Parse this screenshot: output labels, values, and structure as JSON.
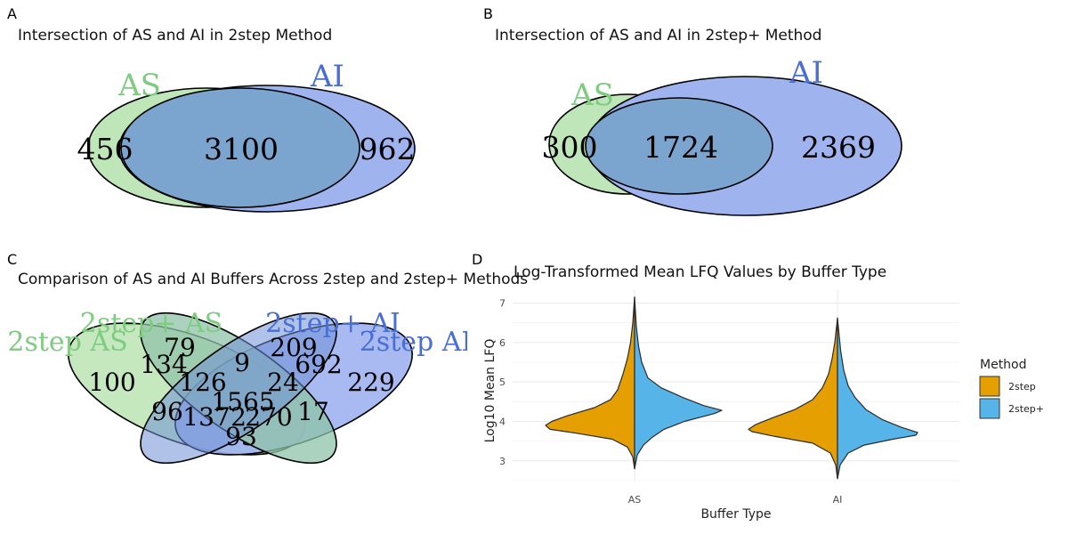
{
  "colors": {
    "as_fill": "#bfe6b8",
    "as_text": "#7fcb80",
    "ai_fill": "#9fb3ef",
    "ai_text": "#4a6fd4",
    "overlap_fill": "#7ba4ce",
    "four_overlap_a": "#8fc3a8",
    "four_overlap_b": "#6f8fd6",
    "step2": "#E69F00",
    "step2plus": "#56B4E9"
  },
  "panels": {
    "A": {
      "letter": "A",
      "title": "Intersection of AS and AI in 2step Method",
      "set_labels": [
        "AS",
        "AI"
      ],
      "counts": {
        "as_only": "456",
        "both": "3100",
        "ai_only": "962"
      }
    },
    "B": {
      "letter": "B",
      "title": "Intersection of AS and AI in 2step+ Method",
      "set_labels": [
        "AS",
        "AI"
      ],
      "counts": {
        "as_only": "300",
        "both": "1724",
        "ai_only": "2369"
      }
    },
    "C": {
      "letter": "C",
      "title": "Comparison of AS and AI Buffers Across 2step and 2step+ Methods",
      "set_labels": [
        "2step AS",
        "2step+ AS",
        "2step+ AI",
        "2step AI"
      ],
      "regions": {
        "c79": "79",
        "c209": "209",
        "c134": "134",
        "c9": "9",
        "c692": "692",
        "c100": "100",
        "c126": "126",
        "c24": "24",
        "c229": "229",
        "c1565": "1565",
        "c96": "96",
        "c137": "137",
        "c2": "2",
        "c270": "270",
        "c17": "17",
        "c93": "93"
      }
    },
    "D": {
      "letter": "D",
      "title": "Log-Transformed Mean LFQ Values by Buffer Type",
      "xlabel": "Buffer Type",
      "ylabel": "Log10 Mean LFQ",
      "legend_title": "Method",
      "legend_items": [
        "2step",
        "2step+"
      ]
    }
  },
  "chart_data": [
    {
      "type": "venn",
      "panel": "A",
      "title": "Intersection of AS and AI in 2step Method",
      "sets": [
        "AS",
        "AI"
      ],
      "values": {
        "AS only": 456,
        "AS & AI": 3100,
        "AI only": 962
      }
    },
    {
      "type": "venn",
      "panel": "B",
      "title": "Intersection of AS and AI in 2step+ Method",
      "sets": [
        "AS",
        "AI"
      ],
      "values": {
        "AS only": 300,
        "AS & AI": 1724,
        "AI only": 2369
      }
    },
    {
      "type": "venn",
      "panel": "C",
      "title": "Comparison of AS and AI Buffers Across 2step and 2step+ Methods",
      "sets": [
        "2step AS",
        "2step+ AS",
        "2step+ AI",
        "2step AI"
      ],
      "region_values": [
        79,
        209,
        134,
        9,
        692,
        100,
        126,
        24,
        229,
        1565,
        96,
        137,
        2,
        270,
        17,
        93
      ]
    },
    {
      "type": "violin",
      "panel": "D",
      "title": "Log-Transformed Mean LFQ Values by Buffer Type",
      "xlabel": "Buffer Type",
      "ylabel": "Log10 Mean LFQ",
      "categories": [
        "AS",
        "AI"
      ],
      "yticks": [
        3,
        4,
        5,
        6,
        7
      ],
      "ylim": [
        2.5,
        7.35
      ],
      "legend_position": "right",
      "grid": true,
      "series": [
        {
          "name": "2step",
          "side": "left",
          "ranges": [
            [
              2.8,
              7.15
            ],
            [
              2.55,
              6.62
            ]
          ],
          "profile": [
            [
              [
                2.8,
                0
              ],
              [
                3.1,
                0.02
              ],
              [
                3.35,
                0.08
              ],
              [
                3.55,
                0.25
              ],
              [
                3.7,
                0.65
              ],
              [
                3.8,
                0.95
              ],
              [
                3.9,
                1.0
              ],
              [
                4.0,
                0.93
              ],
              [
                4.15,
                0.75
              ],
              [
                4.35,
                0.45
              ],
              [
                4.55,
                0.27
              ],
              [
                4.8,
                0.19
              ],
              [
                5.2,
                0.13
              ],
              [
                5.6,
                0.08
              ],
              [
                6.0,
                0.045
              ],
              [
                6.5,
                0.02
              ],
              [
                7.15,
                0
              ]
            ],
            [
              [
                2.55,
                0
              ],
              [
                2.9,
                0.02
              ],
              [
                3.2,
                0.08
              ],
              [
                3.45,
                0.28
              ],
              [
                3.62,
                0.7
              ],
              [
                3.74,
                0.96
              ],
              [
                3.8,
                1.0
              ],
              [
                3.92,
                0.92
              ],
              [
                4.1,
                0.72
              ],
              [
                4.3,
                0.48
              ],
              [
                4.55,
                0.28
              ],
              [
                4.85,
                0.17
              ],
              [
                5.2,
                0.1
              ],
              [
                5.6,
                0.06
              ],
              [
                6.0,
                0.03
              ],
              [
                6.62,
                0
              ]
            ]
          ]
        },
        {
          "name": "2step+",
          "side": "right",
          "ranges": [
            [
              2.8,
              7.15
            ],
            [
              2.55,
              6.62
            ]
          ],
          "profile": [
            [
              [
                2.8,
                0
              ],
              [
                3.15,
                0.03
              ],
              [
                3.4,
                0.1
              ],
              [
                3.6,
                0.2
              ],
              [
                3.8,
                0.33
              ],
              [
                4.0,
                0.56
              ],
              [
                4.2,
                0.9
              ],
              [
                4.28,
                0.98
              ],
              [
                4.4,
                0.78
              ],
              [
                4.6,
                0.55
              ],
              [
                4.85,
                0.3
              ],
              [
                5.1,
                0.15
              ],
              [
                5.5,
                0.08
              ],
              [
                5.9,
                0.045
              ],
              [
                6.4,
                0.02
              ],
              [
                7.15,
                0
              ]
            ],
            [
              [
                2.55,
                0
              ],
              [
                2.9,
                0.03
              ],
              [
                3.2,
                0.12
              ],
              [
                3.4,
                0.3
              ],
              [
                3.55,
                0.62
              ],
              [
                3.65,
                0.88
              ],
              [
                3.72,
                0.9
              ],
              [
                3.85,
                0.72
              ],
              [
                4.05,
                0.5
              ],
              [
                4.3,
                0.32
              ],
              [
                4.6,
                0.2
              ],
              [
                4.9,
                0.12
              ],
              [
                5.3,
                0.07
              ],
              [
                5.8,
                0.035
              ],
              [
                6.62,
                0
              ]
            ]
          ]
        }
      ]
    }
  ]
}
